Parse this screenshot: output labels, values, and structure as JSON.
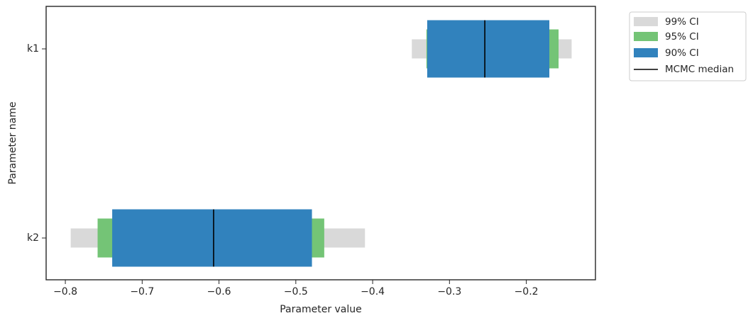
{
  "chart_data": {
    "type": "interval",
    "xlabel": "Parameter value",
    "ylabel": "Parameter name",
    "categories": [
      "k1",
      "k2"
    ],
    "series": [
      {
        "name": "99% CI",
        "color": "#d9d9d9",
        "values": [
          [
            -0.349,
            -0.141
          ],
          [
            -0.793,
            -0.41
          ]
        ]
      },
      {
        "name": "95% CI",
        "color": "#74c476",
        "values": [
          [
            -0.33,
            -0.158
          ],
          [
            -0.758,
            -0.463
          ]
        ]
      },
      {
        "name": "90% CI",
        "color": "#3182bd",
        "values": [
          [
            -0.329,
            -0.17
          ],
          [
            -0.739,
            -0.479
          ]
        ]
      },
      {
        "name": "MCMC median",
        "color": "#000000",
        "values": [
          -0.254,
          -0.607
        ]
      }
    ],
    "xlim": [
      -0.825,
      -0.11
    ],
    "xticks": [
      {
        "value": -0.8,
        "label": "−0.8"
      },
      {
        "value": -0.7,
        "label": "−0.7"
      },
      {
        "value": -0.6,
        "label": "−0.6"
      },
      {
        "value": -0.5,
        "label": "−0.5"
      },
      {
        "value": -0.4,
        "label": "−0.4"
      },
      {
        "value": -0.3,
        "label": "−0.3"
      },
      {
        "value": -0.2,
        "label": "−0.2"
      }
    ],
    "legend": "outside-upper-right"
  }
}
